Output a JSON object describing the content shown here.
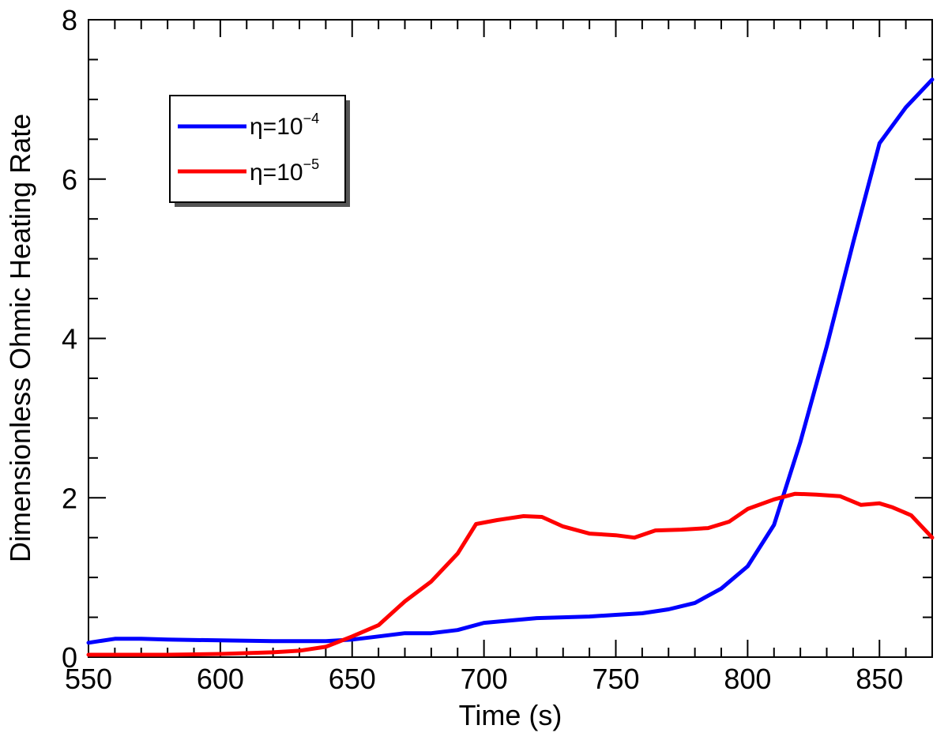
{
  "chart_data": {
    "type": "line",
    "title": "",
    "xlabel": "Time (s)",
    "ylabel": "Dimensionless Ohmic Heating Rate",
    "xlim": [
      550,
      870
    ],
    "ylim": [
      0,
      8
    ],
    "x_ticks": [
      550,
      600,
      650,
      700,
      750,
      800,
      850
    ],
    "y_ticks": [
      0,
      2,
      4,
      6,
      8
    ],
    "x_tick_labels": [
      "550",
      "600",
      "650",
      "700",
      "750",
      "800",
      "850"
    ],
    "y_tick_labels": [
      "0",
      "2",
      "4",
      "6",
      "8"
    ],
    "grid": false,
    "legend_position": "top-left",
    "series": [
      {
        "name_prefix": "η=10",
        "name_exponent": "−4",
        "color": "#0000ff",
        "x": [
          550,
          560,
          570,
          580,
          600,
          620,
          640,
          650,
          660,
          670,
          680,
          690,
          700,
          710,
          720,
          740,
          750,
          760,
          770,
          780,
          790,
          800,
          810,
          820,
          830,
          840,
          850,
          860,
          870
        ],
        "y": [
          0.18,
          0.23,
          0.23,
          0.22,
          0.21,
          0.2,
          0.2,
          0.22,
          0.26,
          0.3,
          0.3,
          0.34,
          0.43,
          0.46,
          0.49,
          0.51,
          0.53,
          0.55,
          0.6,
          0.68,
          0.86,
          1.14,
          1.66,
          2.7,
          3.9,
          5.2,
          6.45,
          6.9,
          7.25
        ]
      },
      {
        "name_prefix": "η=10",
        "name_exponent": "−5",
        "color": "#ff0000",
        "x": [
          550,
          560,
          580,
          600,
          620,
          630,
          640,
          650,
          660,
          670,
          680,
          690,
          697,
          705,
          715,
          722,
          730,
          740,
          750,
          757,
          765,
          775,
          785,
          793,
          800,
          810,
          818,
          826,
          835,
          843,
          850,
          855,
          862,
          870
        ],
        "y": [
          0.03,
          0.03,
          0.03,
          0.04,
          0.06,
          0.08,
          0.13,
          0.26,
          0.4,
          0.7,
          0.95,
          1.3,
          1.67,
          1.72,
          1.77,
          1.76,
          1.64,
          1.55,
          1.53,
          1.5,
          1.59,
          1.6,
          1.62,
          1.7,
          1.86,
          1.98,
          2.05,
          2.04,
          2.02,
          1.91,
          1.93,
          1.88,
          1.78,
          1.5
        ]
      }
    ]
  }
}
